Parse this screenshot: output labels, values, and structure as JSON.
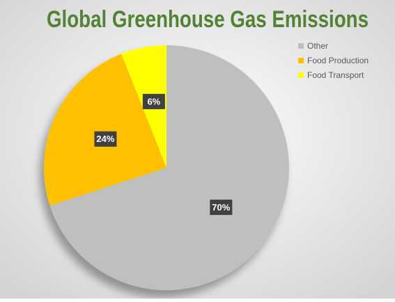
{
  "chart_data": {
    "type": "pie",
    "title": "Global Greenhouse Gas Emissions",
    "categories": [
      "Other",
      "Food Production",
      "Food Transport"
    ],
    "values": [
      70,
      24,
      6
    ],
    "value_labels": [
      "70%",
      "24%",
      "6%"
    ],
    "colors": [
      "#bfbfbf",
      "#ffc000",
      "#ffff00"
    ],
    "legend": "top-right"
  }
}
